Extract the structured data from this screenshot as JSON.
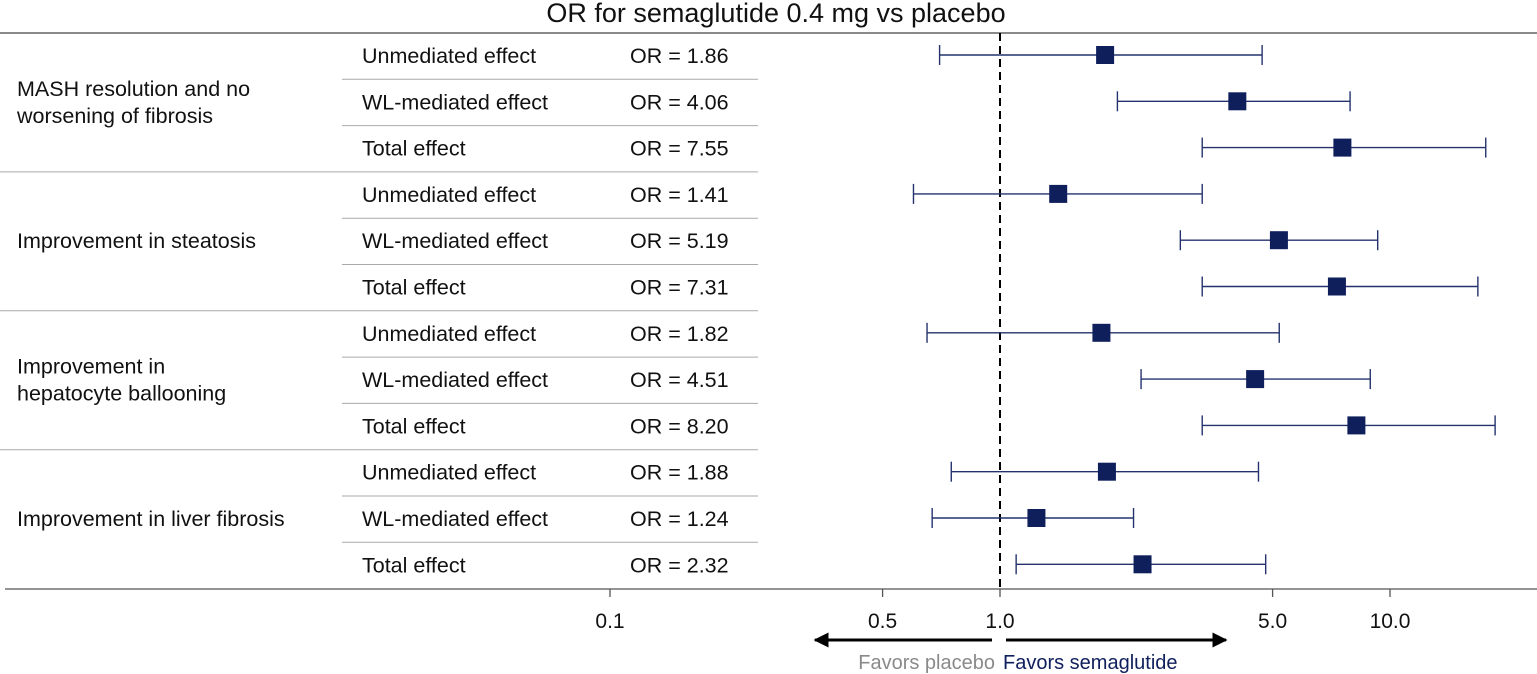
{
  "colors": {
    "marker": "#0f1f5c",
    "ci_line": "#24336e",
    "placebo_text": "#8a8a8a",
    "semaglutide_text": "#0f1f5c",
    "table_rule": "#a9a9a9"
  },
  "chart_data": {
    "type": "forest",
    "title": "OR for semaglutide 0.4 mg vs placebo",
    "x_scale": "log",
    "xlim": [
      0.1,
      19
    ],
    "ticks": [
      "0.1",
      "0.5",
      "1.0",
      "5.0",
      "10.0"
    ],
    "tick_values": [
      0.1,
      0.5,
      1.0,
      5.0,
      10.0
    ],
    "reference_line": 1.0,
    "direction_labels": {
      "left": "Favors placebo",
      "right": "Favors semaglutide"
    },
    "groups": [
      {
        "outcome": "MASH resolution and no worsening of fibrosis",
        "outcome_lines": [
          "MASH resolution and no",
          "worsening of fibrosis"
        ],
        "rows": [
          {
            "effect": "Unmediated effect",
            "or_text": "OR = 1.86",
            "or": 1.86,
            "ci": [
              0.7,
              4.7
            ]
          },
          {
            "effect": "WL-mediated effect",
            "or_text": "OR = 4.06",
            "or": 4.06,
            "ci": [
              2.0,
              7.9
            ]
          },
          {
            "effect": "Total effect",
            "or_text": "OR = 7.55",
            "or": 7.55,
            "ci": [
              3.3,
              17.6
            ]
          }
        ]
      },
      {
        "outcome": "Improvement in steatosis",
        "outcome_lines": [
          "Improvement in steatosis"
        ],
        "rows": [
          {
            "effect": "Unmediated effect",
            "or_text": "OR = 1.41",
            "or": 1.41,
            "ci": [
              0.6,
              3.3
            ]
          },
          {
            "effect": "WL-mediated effect",
            "or_text": "OR = 5.19",
            "or": 5.19,
            "ci": [
              2.9,
              9.3
            ]
          },
          {
            "effect": "Total effect",
            "or_text": "OR = 7.31",
            "or": 7.31,
            "ci": [
              3.3,
              16.8
            ]
          }
        ]
      },
      {
        "outcome": "Improvement in hepatocyte ballooning",
        "outcome_lines": [
          "Improvement in",
          "hepatocyte ballooning"
        ],
        "rows": [
          {
            "effect": "Unmediated effect",
            "or_text": "OR = 1.82",
            "or": 1.82,
            "ci": [
              0.65,
              5.2
            ]
          },
          {
            "effect": "WL-mediated effect",
            "or_text": "OR = 4.51",
            "or": 4.51,
            "ci": [
              2.3,
              8.9
            ]
          },
          {
            "effect": "Total effect",
            "or_text": "OR = 8.20",
            "or": 8.2,
            "ci": [
              3.3,
              18.6
            ]
          }
        ]
      },
      {
        "outcome": "Improvement in liver fibrosis",
        "outcome_lines": [
          "Improvement in liver fibrosis"
        ],
        "rows": [
          {
            "effect": "Unmediated effect",
            "or_text": "OR = 1.88",
            "or": 1.88,
            "ci": [
              0.75,
              4.6
            ]
          },
          {
            "effect": "WL-mediated effect",
            "or_text": "OR = 1.24",
            "or": 1.24,
            "ci": [
              0.67,
              2.2
            ]
          },
          {
            "effect": "Total effect",
            "or_text": "OR = 2.32",
            "or": 2.32,
            "ci": [
              1.1,
              4.8
            ]
          }
        ]
      }
    ]
  }
}
